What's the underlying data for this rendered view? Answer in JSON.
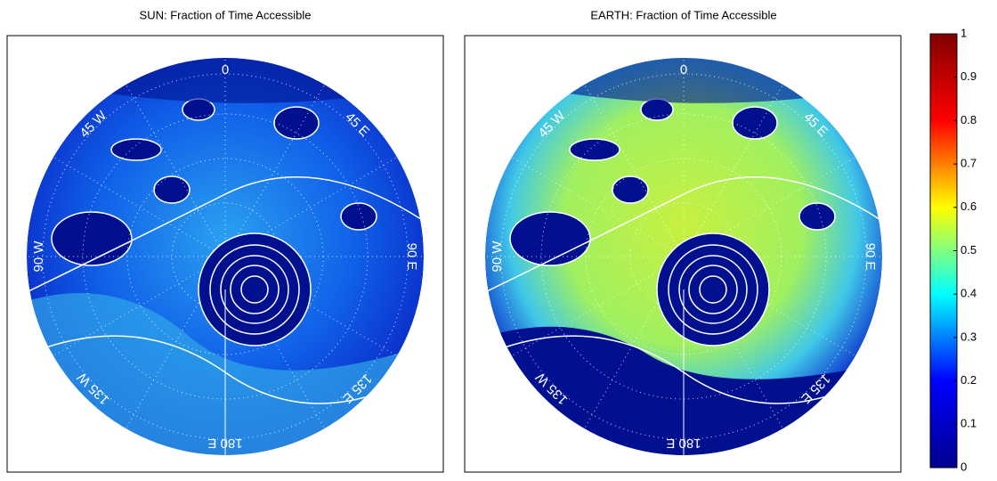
{
  "chart_data": [
    {
      "type": "polar-map",
      "title": "SUN: Fraction of Time Accessible",
      "labels": [
        "0",
        "45 E",
        "90 E",
        "135 E",
        "180 E",
        "135 W",
        "90 W",
        "45 W"
      ]
    },
    {
      "type": "polar-map",
      "title": "EARTH: Fraction of Time Accessible",
      "labels": [
        "0",
        "45 E",
        "90 E",
        "135 E",
        "180 E",
        "135 W",
        "90 W",
        "45 W"
      ]
    },
    {
      "type": "colorbar",
      "ylim": [
        0,
        1
      ],
      "yticks": [
        0,
        0.1,
        0.2,
        0.3,
        0.4,
        0.5,
        0.6,
        0.7,
        0.8,
        0.9,
        1
      ],
      "colors": [
        "#00008f",
        "#0000ff",
        "#00ffff",
        "#ffff00",
        "#ff0000",
        "#800000"
      ]
    }
  ]
}
